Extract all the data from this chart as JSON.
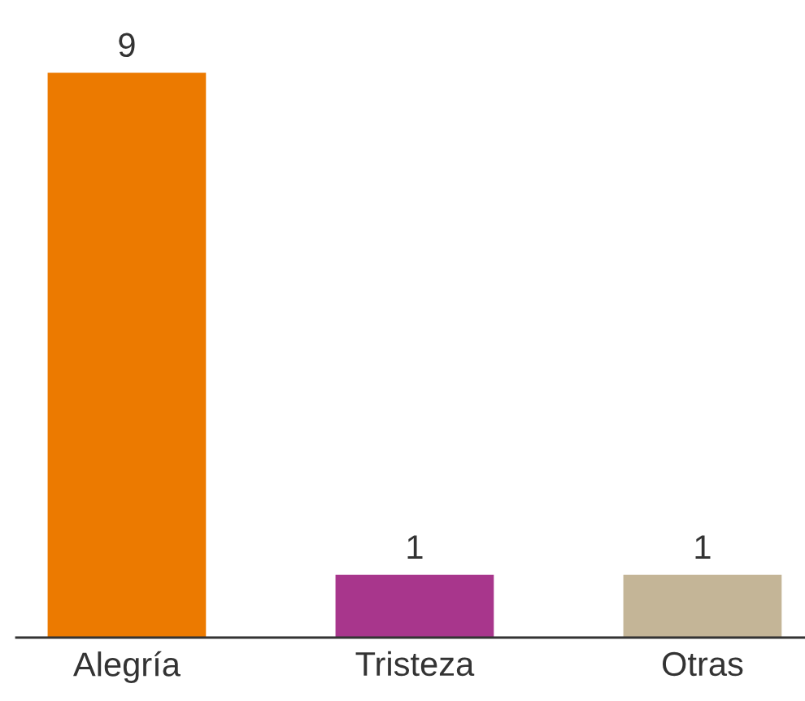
{
  "chart_data": {
    "type": "bar",
    "categories": [
      "Alegría",
      "Tristeza",
      "Otras"
    ],
    "values": [
      9,
      1,
      1
    ],
    "colors": [
      "#ec7a00",
      "#a8368c",
      "#c4b597"
    ],
    "data_labels": true,
    "grid": false,
    "legend": false
  }
}
